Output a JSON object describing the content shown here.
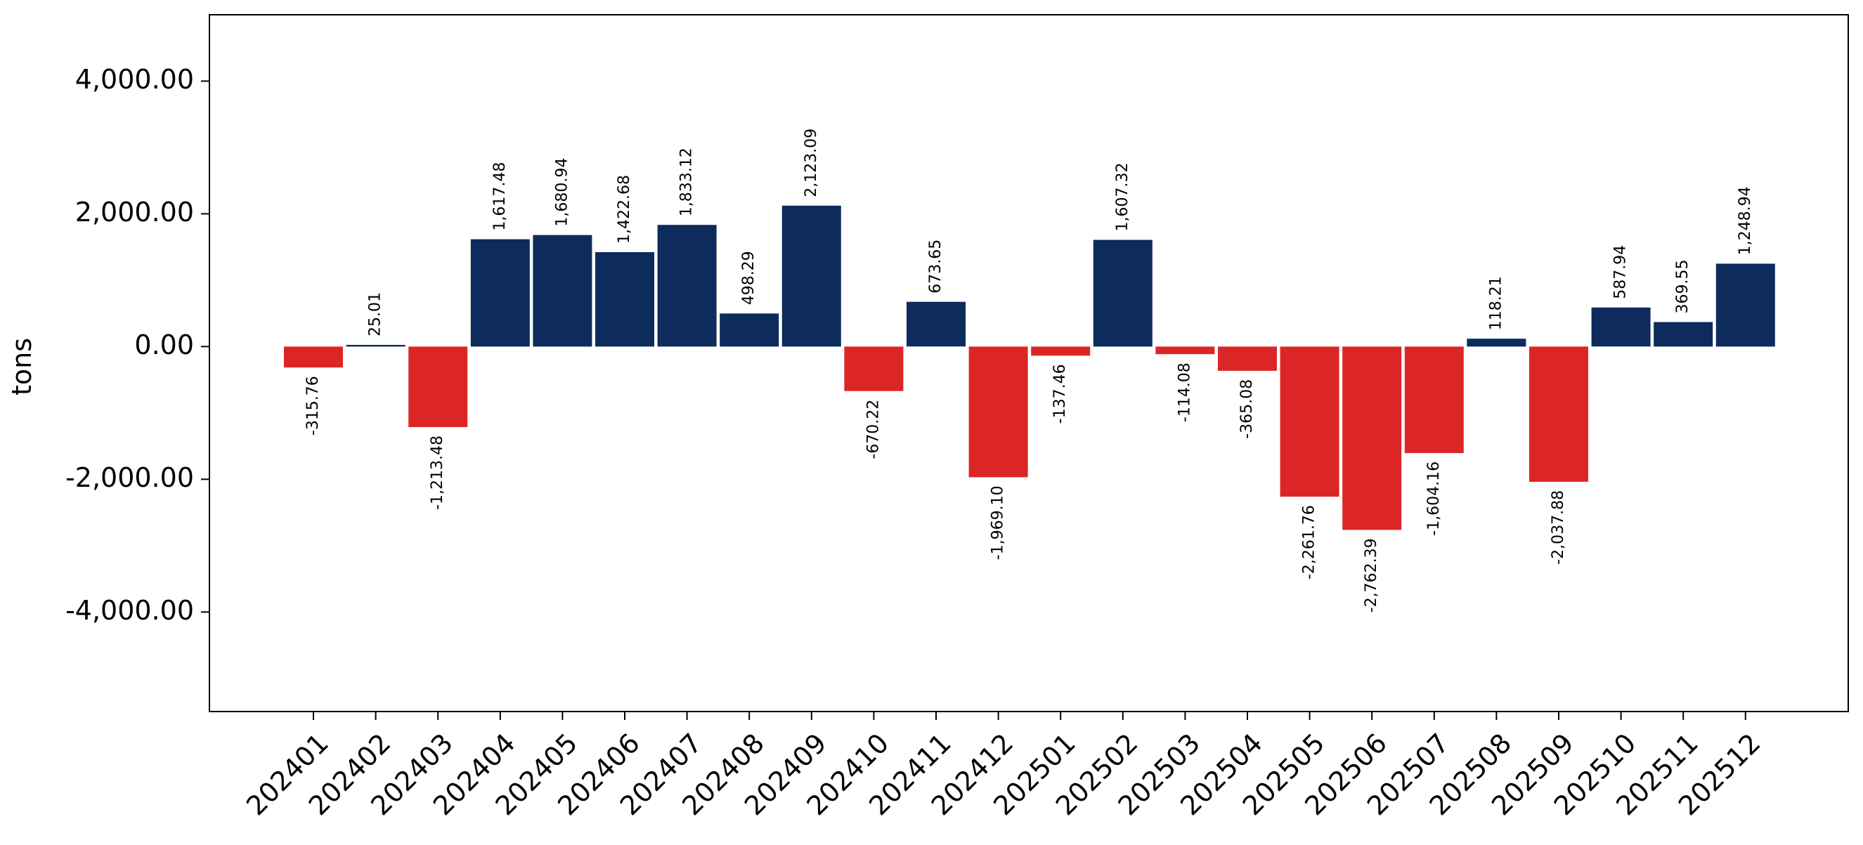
{
  "chart_data": {
    "type": "bar",
    "title": "",
    "xlabel": "",
    "ylabel": "tons",
    "ylim": [
      -5500,
      5000
    ],
    "yticks": [
      -4000,
      -2000,
      0,
      2000,
      4000
    ],
    "ytick_labels": [
      "-4,000.00",
      "-2,000.00",
      "0.00",
      "2,000.00",
      "4,000.00"
    ],
    "grid": false,
    "legend": "none",
    "colors": {
      "positive": "#0d2b5c",
      "negative": "#dc2626"
    },
    "categories": [
      "202401",
      "202402",
      "202403",
      "202404",
      "202405",
      "202406",
      "202407",
      "202408",
      "202409",
      "202410",
      "202411",
      "202412",
      "202501",
      "202502",
      "202503",
      "202504",
      "202505",
      "202506",
      "202507",
      "202508",
      "202509",
      "202510",
      "202511",
      "202512"
    ],
    "values": [
      -315.76,
      25.01,
      -1213.48,
      1617.48,
      1680.94,
      1422.68,
      1833.12,
      498.29,
      2123.09,
      -670.22,
      673.65,
      -1969.1,
      -137.46,
      1607.32,
      -114.08,
      -365.08,
      -2261.76,
      -2762.39,
      -1604.16,
      118.21,
      -2037.88,
      587.94,
      369.55,
      1248.94
    ],
    "labels": [
      "-315.76",
      "25.01",
      "-1,213.48",
      "1,617.48",
      "1,680.94",
      "1,422.68",
      "1,833.12",
      "498.29",
      "2,123.09",
      "-670.22",
      "673.65",
      "-1,969.10",
      "-137.46",
      "1,607.32",
      "-114.08",
      "-365.08",
      "-2,261.76",
      "-2,762.39",
      "-1,604.16",
      "118.21",
      "-2,037.88",
      "587.94",
      "369.55",
      "1,248.94"
    ]
  }
}
